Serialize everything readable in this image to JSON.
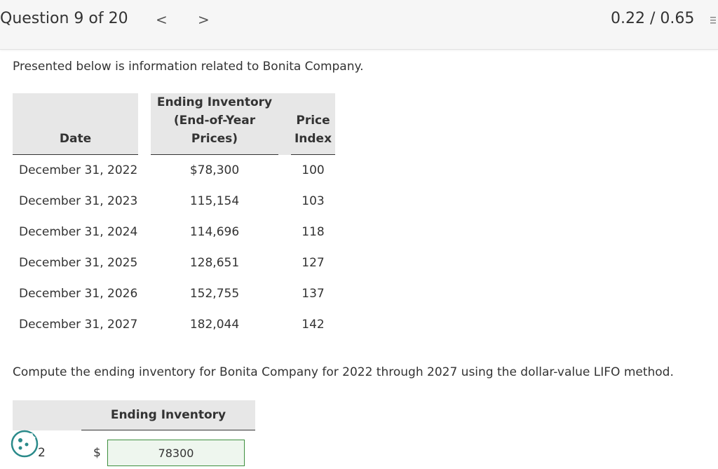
{
  "header": {
    "question_label": "Question 9 of 20",
    "prev_glyph": "<",
    "next_glyph": ">",
    "score": "0.22 / 0.65"
  },
  "intro_text": "Presented below is information related to Bonita Company.",
  "table": {
    "headers": {
      "date": "Date",
      "inventory_line1": "Ending Inventory",
      "inventory_line2": "(End-of-Year Prices)",
      "price_line1": "Price",
      "price_line2": "Index"
    },
    "rows": [
      {
        "date": "December 31, 2022",
        "inventory": "$78,300",
        "index": "100"
      },
      {
        "date": "December 31, 2023",
        "inventory": "115,154",
        "index": "103"
      },
      {
        "date": "December 31, 2024",
        "inventory": "114,696",
        "index": "118"
      },
      {
        "date": "December 31, 2025",
        "inventory": "128,651",
        "index": "127"
      },
      {
        "date": "December 31, 2026",
        "inventory": "152,755",
        "index": "137"
      },
      {
        "date": "December 31, 2027",
        "inventory": "182,044",
        "index": "142"
      }
    ]
  },
  "instruction_text": "Compute the ending inventory for Bonita Company for 2022 through 2027 using the dollar-value LIFO method.",
  "answer": {
    "header": "Ending Inventory",
    "row_year_suffix": "2",
    "currency": "$",
    "value": "78300"
  },
  "icons": {
    "cookie": "cookie-icon",
    "side": "side-panel-icon"
  },
  "colors": {
    "input_border": "#3d8f3d",
    "cookie_accent": "#2a8a8a"
  }
}
